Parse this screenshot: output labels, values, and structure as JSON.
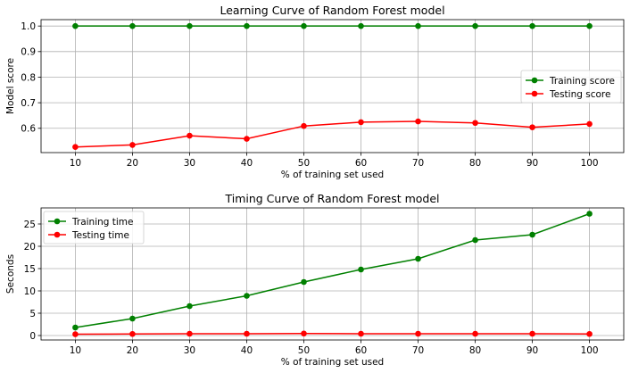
{
  "chart_data": [
    {
      "type": "line",
      "title": "Learning Curve of Random Forest model",
      "xlabel": "% of training set used",
      "ylabel": "Model score",
      "x": [
        10,
        20,
        30,
        40,
        50,
        60,
        70,
        80,
        90,
        100
      ],
      "xlim": [
        4,
        106
      ],
      "ylim": [
        0.505,
        1.025
      ],
      "yticks": [
        0.6,
        0.7,
        0.8,
        0.9,
        1.0
      ],
      "ytick_labels": [
        "0.6",
        "0.7",
        "0.8",
        "0.9",
        "1.0"
      ],
      "grid": true,
      "legend_position": "center-right",
      "series": [
        {
          "name": "Training score",
          "color": "#008000",
          "values": [
            1.0,
            1.0,
            1.0,
            1.0,
            1.0,
            1.0,
            1.0,
            1.0,
            1.0,
            1.0
          ]
        },
        {
          "name": "Testing score",
          "color": "#ff0000",
          "values": [
            0.527,
            0.535,
            0.571,
            0.559,
            0.609,
            0.624,
            0.627,
            0.621,
            0.604,
            0.617
          ]
        }
      ]
    },
    {
      "type": "line",
      "title": "Timing Curve of Random Forest model",
      "xlabel": "% of training set used",
      "ylabel": "Seconds",
      "x": [
        10,
        20,
        30,
        40,
        50,
        60,
        70,
        80,
        90,
        100
      ],
      "xlim": [
        4,
        106
      ],
      "ylim": [
        -1.0,
        28.6
      ],
      "yticks": [
        0,
        5,
        10,
        15,
        20,
        25
      ],
      "ytick_labels": [
        "0",
        "5",
        "10",
        "15",
        "20",
        "25"
      ],
      "grid": true,
      "legend_position": "top-left",
      "series": [
        {
          "name": "Training time",
          "color": "#008000",
          "values": [
            1.8,
            3.8,
            6.6,
            8.9,
            12.0,
            14.8,
            17.2,
            21.4,
            22.6,
            27.3
          ]
        },
        {
          "name": "Testing time",
          "color": "#ff0000",
          "values": [
            0.3,
            0.35,
            0.4,
            0.4,
            0.45,
            0.4,
            0.4,
            0.4,
            0.4,
            0.35
          ]
        }
      ]
    }
  ]
}
